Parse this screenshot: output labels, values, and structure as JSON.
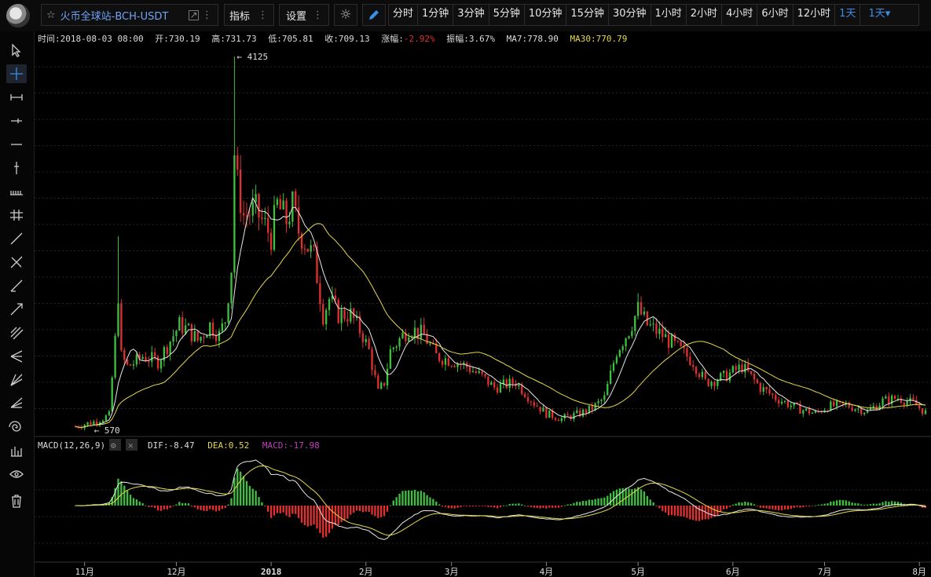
{
  "header": {
    "symbol": "火币全球站-BCH-USDT",
    "indicator_label": "指标",
    "settings_label": "设置",
    "periods": [
      "分时",
      "1分钟",
      "3分钟",
      "5分钟",
      "10分钟",
      "15分钟",
      "30分钟",
      "1小时",
      "2小时",
      "4小时",
      "6小时",
      "12小时",
      "1天"
    ],
    "active_period": "1天",
    "period_dropdown": "1天▾"
  },
  "tools": [
    "cursor-icon",
    "crosshair-icon",
    "segment-icon",
    "horizontal-ray-icon",
    "horizontal-line-icon",
    "vertical-line-icon",
    "price-line-icon",
    "parallel-lines-icon",
    "ray-icon",
    "arrow-line-icon",
    "extended-line-icon",
    "arrow-icon",
    "parallel-channel-icon",
    "pitchfork-icon",
    "gann-fan-icon",
    "fib-fan-icon",
    "fib-spiral-icon",
    "measure-icon",
    "visibility-eye-icon",
    "trash-icon"
  ],
  "info": {
    "time_label": "时间:",
    "time": "2018-08-03 08:00",
    "open_label": "开:",
    "open": "730.19",
    "high_label": "高:",
    "high": "731.73",
    "low_label": "低:",
    "low": "705.81",
    "close_label": "收:",
    "close": "709.13",
    "change_label": "涨幅:",
    "change": "-2.92%",
    "amp_label": "振幅:",
    "amp": "3.67%",
    "ma7_label": "MA7:",
    "ma7": "778.90",
    "ma30_label": "MA30:",
    "ma30": "770.79"
  },
  "markers": {
    "max": "4125",
    "min": "570"
  },
  "macd": {
    "title": "MACD(12,26,9)",
    "dif_label": "DIF:",
    "dif": "-8.47",
    "dea_label": "DEA:",
    "dea": "0.52",
    "macd_label": "MACD:",
    "macd": "-17.98"
  },
  "xaxis": [
    "11月",
    "12月",
    "2018",
    "2月",
    "3月",
    "4月",
    "5月",
    "6月",
    "7月",
    "8月"
  ],
  "colors": {
    "up": "#3fbf3f",
    "down": "#e13030",
    "ma7": "#e8e8e8",
    "ma30": "#e6d94a",
    "accent": "#3a8ee6",
    "macd": "#c040c0"
  },
  "chart_data": {
    "type": "candlestick",
    "period": "1天",
    "anchors": [
      [
        "2017-10-29",
        575
      ],
      [
        "2017-11-04",
        620
      ],
      [
        "2017-11-09",
        680
      ],
      [
        "2017-11-11",
        1400
      ],
      [
        "2017-11-12",
        1850
      ],
      [
        "2017-11-13",
        1250
      ],
      [
        "2017-11-15",
        1150
      ],
      [
        "2017-11-18",
        1200
      ],
      [
        "2017-11-20",
        1250
      ],
      [
        "2017-11-25",
        1200
      ],
      [
        "2017-11-30",
        1450
      ],
      [
        "2017-12-02",
        1550
      ],
      [
        "2017-12-05",
        1500
      ],
      [
        "2017-12-08",
        1400
      ],
      [
        "2017-12-12",
        1550
      ],
      [
        "2017-12-15",
        1450
      ],
      [
        "2017-12-17",
        1600
      ],
      [
        "2017-12-19",
        2100
      ],
      [
        "2017-12-20",
        3200
      ],
      [
        "2017-12-21",
        2900
      ],
      [
        "2017-12-23",
        2600
      ],
      [
        "2017-12-27",
        2650
      ],
      [
        "2018-01-01",
        2400
      ],
      [
        "2018-01-03",
        2700
      ],
      [
        "2018-01-06",
        2550
      ],
      [
        "2018-01-08",
        2700
      ],
      [
        "2018-01-10",
        2450
      ],
      [
        "2018-01-12",
        2350
      ],
      [
        "2018-01-15",
        2200
      ],
      [
        "2018-01-18",
        1650
      ],
      [
        "2018-01-20",
        1800
      ],
      [
        "2018-01-23",
        1650
      ],
      [
        "2018-01-27",
        1650
      ],
      [
        "2018-01-31",
        1450
      ],
      [
        "2018-02-02",
        1300
      ],
      [
        "2018-02-05",
        900
      ],
      [
        "2018-02-07",
        1000
      ],
      [
        "2018-02-09",
        1300
      ],
      [
        "2018-02-15",
        1520
      ],
      [
        "2018-02-20",
        1450
      ],
      [
        "2018-02-24",
        1250
      ],
      [
        "2018-03-02",
        1200
      ],
      [
        "2018-03-06",
        1150
      ],
      [
        "2018-03-11",
        1050
      ],
      [
        "2018-03-15",
        950
      ],
      [
        "2018-03-22",
        1000
      ],
      [
        "2018-03-28",
        800
      ],
      [
        "2018-04-01",
        700
      ],
      [
        "2018-04-06",
        650
      ],
      [
        "2018-04-12",
        700
      ],
      [
        "2018-04-16",
        750
      ],
      [
        "2018-04-20",
        850
      ],
      [
        "2018-04-24",
        1300
      ],
      [
        "2018-04-28",
        1500
      ],
      [
        "2018-05-01",
        1700
      ],
      [
        "2018-05-04",
        1550
      ],
      [
        "2018-05-09",
        1450
      ],
      [
        "2018-05-13",
        1350
      ],
      [
        "2018-05-19",
        1200
      ],
      [
        "2018-05-23",
        1000
      ],
      [
        "2018-05-29",
        1050
      ],
      [
        "2018-06-04",
        1150
      ],
      [
        "2018-06-10",
        950
      ],
      [
        "2018-06-15",
        850
      ],
      [
        "2018-06-22",
        750
      ],
      [
        "2018-06-28",
        700
      ],
      [
        "2018-07-02",
        770
      ],
      [
        "2018-07-08",
        780
      ],
      [
        "2018-07-15",
        720
      ],
      [
        "2018-07-20",
        820
      ],
      [
        "2018-07-25",
        850
      ],
      [
        "2018-07-30",
        800
      ],
      [
        "2018-08-03",
        709
      ]
    ],
    "max": 4125,
    "max_date": "2017-12-20",
    "min": 570,
    "min_date": "2017-11-02",
    "last": {
      "date": "2018-08-03",
      "open": 730.19,
      "high": 731.73,
      "low": 705.81,
      "close": 709.13
    },
    "ma": [
      "MA7",
      "MA30"
    ],
    "xticks": [
      "2017-11-01",
      "2017-12-01",
      "2018-01-01",
      "2018-02-01",
      "2018-03-01",
      "2018-04-01",
      "2018-05-01",
      "2018-06-01",
      "2018-07-01",
      "2018-08-01"
    ],
    "grid": true
  }
}
